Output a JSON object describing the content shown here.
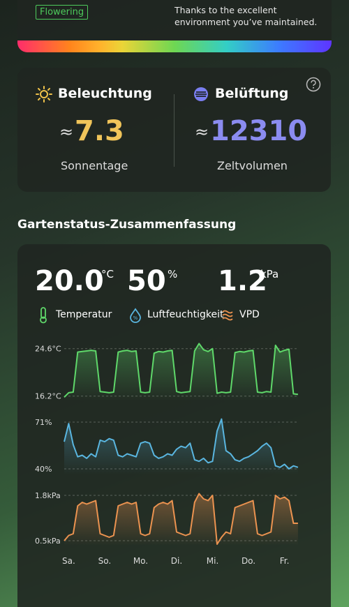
{
  "header": {
    "badge": "Flowering",
    "message": "Thanks to the excellent environment you’ve maintained."
  },
  "stats": {
    "lighting": {
      "title": "Beleuchtung",
      "approx": "≈",
      "value": "7.3",
      "label": "Sonnentage"
    },
    "ventilation": {
      "title": "Belüftung",
      "approx": "≈",
      "value": "12310",
      "label": "Zeltvolumen"
    }
  },
  "summary": {
    "title": "Gartenstatus-Zusammenfassung",
    "readings": [
      {
        "value": "20.0",
        "unit": "°C"
      },
      {
        "value": "50",
        "unit": "%"
      },
      {
        "value": "1.2",
        "unit": "kPa"
      }
    ]
  },
  "chart_data": [
    {
      "type": "line",
      "ylim": [
        15.3,
        25.8
      ],
      "yticks": [
        {
          "value": 24.6,
          "label": "24.6°C"
        },
        {
          "value": 16.2,
          "label": "16.2°C"
        }
      ],
      "grid": true,
      "series": [
        {
          "name": "Temperatur",
          "color": "#5fd86a",
          "values": [
            16.0,
            16.8,
            16.9,
            24.0,
            24.1,
            24.2,
            24.3,
            24.2,
            17.0,
            16.9,
            16.8,
            16.9,
            24.0,
            24.2,
            24.3,
            24.1,
            24.2,
            16.9,
            16.8,
            16.9,
            23.8,
            24.1,
            24.0,
            24.2,
            24.3,
            17.0,
            16.8,
            16.9,
            17.0,
            24.2,
            25.5,
            24.4,
            24.1,
            24.6,
            16.7,
            16.9,
            16.8,
            16.9,
            23.9,
            24.1,
            24.0,
            24.2,
            24.3,
            16.9,
            16.8,
            17.0,
            16.9,
            25.2,
            24.0,
            24.3,
            24.5,
            16.6,
            16.5
          ]
        }
      ]
    },
    {
      "type": "line",
      "ylim": [
        36.3,
        75.6
      ],
      "yticks": [
        {
          "value": 71,
          "label": "71%"
        },
        {
          "value": 40,
          "label": "40%"
        }
      ],
      "grid": true,
      "series": [
        {
          "name": "Luftfeuchtigkeit",
          "color": "#5ab6e0",
          "values": [
            58,
            70,
            56,
            48,
            49,
            47,
            50,
            48,
            59,
            58,
            60,
            59,
            49,
            48,
            50,
            49,
            48,
            57,
            58,
            57,
            49,
            47,
            48,
            50,
            49,
            53,
            55,
            54,
            57,
            46,
            45,
            47,
            44,
            45,
            65,
            73,
            52,
            50,
            46,
            45,
            47,
            48,
            50,
            52,
            55,
            57,
            54,
            42,
            41,
            43,
            40,
            42,
            41
          ]
        }
      ]
    },
    {
      "type": "line",
      "ylim": [
        0.36,
        2.0
      ],
      "yticks": [
        {
          "value": 1.8,
          "label": "1.8kPa"
        },
        {
          "value": 0.5,
          "label": "0.5kPa"
        }
      ],
      "grid": true,
      "categories": [
        null,
        "Sa.",
        null,
        null,
        null,
        null,
        null,
        null,
        null,
        "So.",
        null,
        null,
        null,
        null,
        null,
        null,
        null,
        "Mo.",
        null,
        null,
        null,
        null,
        null,
        null,
        null,
        "Di.",
        null,
        null,
        null,
        null,
        null,
        null,
        null,
        "Mi.",
        null,
        null,
        null,
        null,
        null,
        null,
        null,
        "Do.",
        null,
        null,
        null,
        null,
        null,
        null,
        null,
        "Fr.",
        null,
        null,
        null
      ],
      "series": [
        {
          "name": "VPD",
          "color": "#ec9350",
          "values": [
            0.5,
            0.65,
            0.7,
            1.5,
            1.6,
            1.55,
            1.6,
            1.65,
            0.7,
            0.65,
            0.6,
            0.65,
            1.5,
            1.55,
            1.6,
            1.55,
            1.6,
            0.7,
            0.65,
            0.7,
            1.45,
            1.55,
            1.6,
            1.55,
            1.65,
            0.75,
            0.7,
            0.65,
            0.7,
            1.6,
            1.85,
            1.7,
            1.65,
            1.8,
            0.4,
            0.6,
            0.75,
            0.7,
            1.45,
            1.5,
            1.55,
            1.6,
            1.65,
            0.7,
            0.65,
            0.7,
            0.75,
            1.8,
            1.7,
            1.75,
            1.65,
            1.0,
            1.0
          ]
        }
      ]
    }
  ]
}
